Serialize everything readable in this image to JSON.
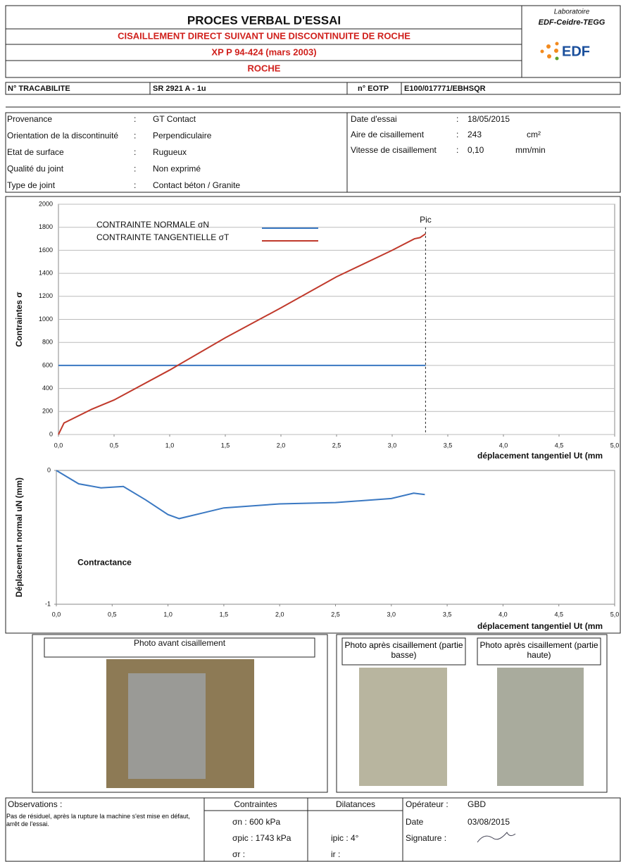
{
  "header": {
    "title": "PROCES VERBAL D'ESSAI",
    "subtitle": "CISAILLEMENT DIRECT SUIVANT UNE DISCONTINUITE DE ROCHE",
    "standard": "XP P 94-424 (mars 2003)",
    "material": "ROCHE",
    "lab_label": "Laboratoire",
    "lab_name": "EDF-Ceidre-TEGG",
    "logo": "EDF"
  },
  "traceability": {
    "label": "N° TRACABILITE",
    "value": "SR 2921 A - 1u",
    "eotp_label": "n° EOTP",
    "eotp_value": "E100/017771/EBHSQR"
  },
  "info": {
    "left": [
      {
        "label": "Provenance",
        "value": "GT Contact"
      },
      {
        "label": "Orientation de la discontinuité",
        "value": "Perpendiculaire"
      },
      {
        "label": "Etat de surface",
        "value": "Rugueux"
      },
      {
        "label": "Qualité du joint",
        "value": "Non exprimé"
      },
      {
        "label": "Type de joint",
        "value": "Contact béton / Granite"
      }
    ],
    "right": [
      {
        "label": "Date d'essai",
        "value": "18/05/2015",
        "unit": null
      },
      {
        "label": "Aire de cisaillement",
        "value": "243",
        "unit": "cm²"
      },
      {
        "label": "Vitesse de cisaillement",
        "value": "0,10",
        "unit": "mm/min"
      }
    ]
  },
  "chart_data": [
    {
      "type": "line",
      "y_label": "Contraintes σ",
      "x_label": "déplacement tangentiel Ut (mm",
      "xlim": [
        0,
        5
      ],
      "ylim": [
        0,
        2000
      ],
      "xticks": [
        {
          "value": 0,
          "label": "0,0"
        },
        {
          "value": 0.5,
          "label": "0,5"
        },
        {
          "value": 1,
          "label": "1,0"
        },
        {
          "value": 1.5,
          "label": "1,5"
        },
        {
          "value": 2,
          "label": "2,0"
        },
        {
          "value": 2.5,
          "label": "2,5"
        },
        {
          "value": 3,
          "label": "3,0"
        },
        {
          "value": 3.5,
          "label": "3,5"
        },
        {
          "value": 4,
          "label": "4,0"
        },
        {
          "value": 4.5,
          "label": "4,5"
        },
        {
          "value": 5,
          "label": "5,0"
        }
      ],
      "yticks": [
        0,
        200,
        400,
        600,
        800,
        1000,
        1200,
        1400,
        1600,
        1800,
        2000
      ],
      "grid": true,
      "legend": "upper left",
      "series": [
        {
          "name": "CONTRAINTE NORMALE σN",
          "color": "#3a78c2",
          "x": [
            0,
            3.3
          ],
          "values": [
            600,
            600
          ]
        },
        {
          "name": "CONTRAINTE TANGENTIELLE σT",
          "color": "#c0392b",
          "x": [
            0,
            0.05,
            0.3,
            0.5,
            1.0,
            1.5,
            2.0,
            2.5,
            3.0,
            3.2,
            3.25,
            3.3
          ],
          "values": [
            0,
            100,
            220,
            300,
            560,
            840,
            1100,
            1370,
            1600,
            1700,
            1710,
            1743
          ]
        }
      ],
      "annotations": [
        {
          "text": "Pic",
          "x": 3.3,
          "y": 1860
        }
      ]
    },
    {
      "type": "line",
      "y_label": "Déplacement normal uN (mm)",
      "x_label": "déplacement tangentiel Ut (mm",
      "xlim": [
        0,
        5
      ],
      "ylim": [
        -1,
        0
      ],
      "xticks": [
        {
          "value": 0,
          "label": "0,0"
        },
        {
          "value": 0.5,
          "label": "0,5"
        },
        {
          "value": 1,
          "label": "1,0"
        },
        {
          "value": 1.5,
          "label": "1,5"
        },
        {
          "value": 2,
          "label": "2,0"
        },
        {
          "value": 2.5,
          "label": "2,5"
        },
        {
          "value": 3,
          "label": "3,0"
        },
        {
          "value": 3.5,
          "label": "3,5"
        },
        {
          "value": 4,
          "label": "4,0"
        },
        {
          "value": 4.5,
          "label": "4,5"
        },
        {
          "value": 5,
          "label": "5,0"
        }
      ],
      "yticks": [
        -1,
        0
      ],
      "grid": false,
      "series": [
        {
          "color": "#3a78c2",
          "x": [
            0,
            0.2,
            0.4,
            0.6,
            0.8,
            1.0,
            1.1,
            1.3,
            1.5,
            2.0,
            2.5,
            3.0,
            3.2,
            3.3
          ],
          "values": [
            0,
            -0.1,
            -0.13,
            -0.12,
            -0.22,
            -0.33,
            -0.36,
            -0.32,
            -0.28,
            -0.25,
            -0.24,
            -0.21,
            -0.17,
            -0.18
          ]
        }
      ],
      "annotations": [
        {
          "text": "Contractance",
          "x": 0.19,
          "y": -0.69
        }
      ]
    }
  ],
  "photos": {
    "before": "Photo avant cisaillement",
    "after_bottom": "Photo après cisaillement (partie basse)",
    "after_top": "Photo après cisaillement (partie haute)"
  },
  "footer": {
    "observations_label": "Observations :",
    "observations": "Pas de résiduel, après la rupture la machine s'est mise en défaut, arrêt de l'essai.",
    "stress_label": "Contraintes",
    "stress": [
      "σn : 600 kPa",
      "σpic : 1743 kPa",
      "σr :"
    ],
    "dilatance_label": "Dilatances",
    "dilatance": [
      "ipic : 4°",
      "ir :"
    ],
    "operator_label": "Opérateur :",
    "operator": "GBD",
    "date_label": "Date",
    "date": "03/08/2015",
    "signature_label": "Signature :"
  }
}
